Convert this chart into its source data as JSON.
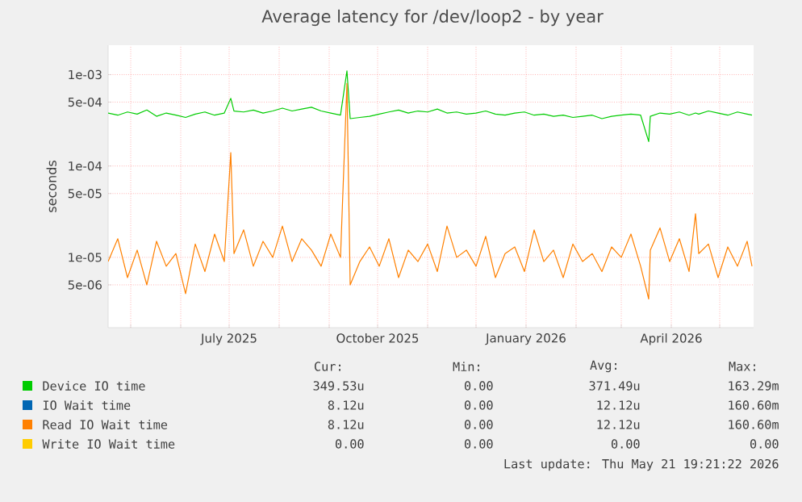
{
  "chart_data": {
    "type": "line",
    "title": "Average latency for /dev/loop2 - by year",
    "ylabel": "seconds",
    "log": "y",
    "grid": true,
    "legend": "bottom",
    "xlim": [
      "2025-04-17",
      "2026-05-22"
    ],
    "ylim": [
      1.7e-06,
      0.0021
    ],
    "xticks": [
      {
        "value": "2025-05-01",
        "label": null
      },
      {
        "value": "2025-06-01",
        "label": null
      },
      {
        "value": "2025-07-01",
        "label": "July 2025"
      },
      {
        "value": "2025-08-01",
        "label": null
      },
      {
        "value": "2025-09-01",
        "label": null
      },
      {
        "value": "2025-10-01",
        "label": "October 2025"
      },
      {
        "value": "2025-11-01",
        "label": null
      },
      {
        "value": "2025-12-01",
        "label": null
      },
      {
        "value": "2026-01-01",
        "label": "January 2026"
      },
      {
        "value": "2026-02-01",
        "label": null
      },
      {
        "value": "2026-03-01",
        "label": null
      },
      {
        "value": "2026-04-01",
        "label": "April 2026"
      },
      {
        "value": "2026-05-01",
        "label": null
      }
    ],
    "yticks": [
      {
        "value": 5e-06,
        "label": "5e-06"
      },
      {
        "value": 1e-05,
        "label": "1e-05"
      },
      {
        "value": 5e-05,
        "label": "5e-05"
      },
      {
        "value": 0.0001,
        "label": "1e-04"
      },
      {
        "value": 0.0005,
        "label": "5e-04"
      },
      {
        "value": 0.001,
        "label": "1e-03"
      }
    ],
    "x": [
      "2025-04-17",
      "2025-04-23",
      "2025-04-29",
      "2025-05-05",
      "2025-05-11",
      "2025-05-17",
      "2025-05-23",
      "2025-05-29",
      "2025-06-04",
      "2025-06-10",
      "2025-06-16",
      "2025-06-22",
      "2025-06-28",
      "2025-07-02",
      "2025-07-04",
      "2025-07-10",
      "2025-07-16",
      "2025-07-22",
      "2025-07-28",
      "2025-08-03",
      "2025-08-09",
      "2025-08-15",
      "2025-08-21",
      "2025-08-27",
      "2025-09-02",
      "2025-09-08",
      "2025-09-12",
      "2025-09-14",
      "2025-09-20",
      "2025-09-26",
      "2025-10-02",
      "2025-10-08",
      "2025-10-14",
      "2025-10-20",
      "2025-10-26",
      "2025-11-01",
      "2025-11-07",
      "2025-11-13",
      "2025-11-19",
      "2025-11-25",
      "2025-12-01",
      "2025-12-07",
      "2025-12-13",
      "2025-12-19",
      "2025-12-25",
      "2025-12-31",
      "2026-01-06",
      "2026-01-12",
      "2026-01-18",
      "2026-01-24",
      "2026-01-30",
      "2026-02-05",
      "2026-02-11",
      "2026-02-17",
      "2026-02-23",
      "2026-03-01",
      "2026-03-07",
      "2026-03-13",
      "2026-03-18",
      "2026-03-19",
      "2026-03-25",
      "2026-03-31",
      "2026-04-06",
      "2026-04-12",
      "2026-04-16",
      "2026-04-18",
      "2026-04-24",
      "2026-04-30",
      "2026-05-06",
      "2026-05-12",
      "2026-05-18",
      "2026-05-21"
    ],
    "series": [
      {
        "name": "Device IO time",
        "color": "#00cc00",
        "values": [
          0.00038,
          0.00036,
          0.00039,
          0.00037,
          0.00041,
          0.00035,
          0.00038,
          0.00036,
          0.00034,
          0.00037,
          0.00039,
          0.00036,
          0.00038,
          0.00055,
          0.0004,
          0.00039,
          0.00041,
          0.00038,
          0.0004,
          0.00043,
          0.0004,
          0.00042,
          0.00044,
          0.0004,
          0.00038,
          0.00036,
          0.0011,
          0.00033,
          0.00034,
          0.00035,
          0.00037,
          0.00039,
          0.00041,
          0.00038,
          0.0004,
          0.00039,
          0.00042,
          0.00038,
          0.00039,
          0.00037,
          0.00038,
          0.0004,
          0.00037,
          0.00036,
          0.00038,
          0.00039,
          0.00036,
          0.00037,
          0.00035,
          0.00036,
          0.00034,
          0.00035,
          0.00036,
          0.00033,
          0.00035,
          0.00036,
          0.00037,
          0.00036,
          0.000185,
          0.00035,
          0.00038,
          0.00037,
          0.00039,
          0.00036,
          0.00038,
          0.00037,
          0.0004,
          0.00038,
          0.00036,
          0.00039,
          0.00037,
          0.00036
        ]
      },
      {
        "name": "IO Wait time",
        "color": "#0066b3",
        "values": [
          null,
          null,
          null,
          null,
          null,
          null,
          null,
          null,
          null,
          null,
          null,
          null,
          null,
          null,
          null,
          null,
          null,
          null,
          null,
          null,
          null,
          null,
          null,
          null,
          null,
          null,
          null,
          null,
          null,
          null,
          null,
          null,
          null,
          null,
          null,
          null,
          null,
          null,
          null,
          null,
          null,
          null,
          null,
          null,
          null,
          null,
          null,
          null,
          null,
          null,
          null,
          null,
          null,
          null,
          null,
          null,
          null,
          null,
          null,
          null,
          null,
          null,
          null,
          null,
          null,
          null,
          null,
          null,
          null,
          null,
          null,
          null
        ]
      },
      {
        "name": "Read IO Wait time",
        "color": "#ff8000",
        "values": [
          9e-06,
          1.6e-05,
          6e-06,
          1.2e-05,
          5e-06,
          1.5e-05,
          8e-06,
          1.1e-05,
          4e-06,
          1.4e-05,
          7e-06,
          1.8e-05,
          9e-06,
          0.00014,
          1.1e-05,
          2e-05,
          8e-06,
          1.5e-05,
          1e-05,
          2.2e-05,
          9e-06,
          1.6e-05,
          1.2e-05,
          8e-06,
          1.8e-05,
          1e-05,
          0.0008,
          5e-06,
          9e-06,
          1.3e-05,
          8e-06,
          1.6e-05,
          6e-06,
          1.2e-05,
          9e-06,
          1.4e-05,
          7e-06,
          2.2e-05,
          1e-05,
          1.2e-05,
          8e-06,
          1.7e-05,
          6e-06,
          1.1e-05,
          1.3e-05,
          7e-06,
          2e-05,
          9e-06,
          1.2e-05,
          6e-06,
          1.4e-05,
          9e-06,
          1.1e-05,
          7e-06,
          1.3e-05,
          1e-05,
          1.8e-05,
          8e-06,
          3.5e-06,
          1.2e-05,
          2.1e-05,
          9e-06,
          1.6e-05,
          7e-06,
          3e-05,
          1.1e-05,
          1.4e-05,
          6e-06,
          1.3e-05,
          8e-06,
          1.5e-05,
          8e-06
        ]
      },
      {
        "name": "Write IO Wait time",
        "color": "#ffcc00",
        "values": [
          null,
          null,
          null,
          null,
          null,
          null,
          null,
          null,
          null,
          null,
          null,
          null,
          null,
          null,
          null,
          null,
          null,
          null,
          null,
          null,
          null,
          null,
          null,
          null,
          null,
          null,
          null,
          null,
          null,
          null,
          null,
          null,
          null,
          null,
          null,
          null,
          null,
          null,
          null,
          null,
          null,
          null,
          null,
          null,
          null,
          null,
          null,
          null,
          null,
          null,
          null,
          null,
          null,
          null,
          null,
          null,
          null,
          null,
          null,
          null,
          null,
          null,
          null,
          null,
          null,
          null,
          null,
          null,
          null,
          null,
          null,
          null
        ]
      }
    ],
    "annotations": [
      "Cur:",
      "Min:",
      "Avg:",
      "Max:",
      "349.53u",
      "0.00",
      "371.49u",
      "163.29m",
      "8.12u",
      "0.00",
      "12.12u",
      "160.60m",
      "8.12u",
      "0.00",
      "12.12u",
      "160.60m",
      "0.00",
      "0.00",
      "0.00",
      "0.00",
      "Last update: Thu May 21 19:21:22 2026"
    ]
  }
}
